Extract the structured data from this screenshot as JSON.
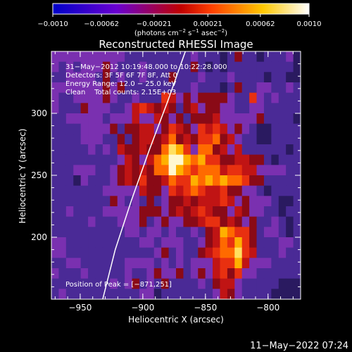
{
  "chart_data": {
    "type": "heatmap",
    "title": "Reconstructed RHESSI Image",
    "xlabel": "Heliocentric X (arcsec)",
    "ylabel": "Heliocentric Y (arcsec)",
    "xlim": [
      -973,
      -774
    ],
    "ylim": [
      150,
      350
    ],
    "xticks": [
      -950,
      -900,
      -850,
      -800
    ],
    "xtick_labels": [
      "−950",
      "−900",
      "−850",
      "−800"
    ],
    "yticks": [
      200,
      250,
      300
    ],
    "ytick_labels": [
      "200",
      "250",
      "300"
    ],
    "colorbar": {
      "ticks": [
        -0.001,
        -0.00062,
        -0.00021,
        0.00021,
        0.00062,
        0.001
      ],
      "tick_labels": [
        "−0.0010",
        "−0.00062",
        "−0.00021",
        "0.00021",
        "0.00062",
        "0.0010"
      ],
      "label_main": "(photons cm",
      "label_exp1": "−2",
      "label_mid": " s",
      "label_exp2": "−1",
      "label_end": " asec",
      "label_exp3": "−2",
      "label_close": ")",
      "colors": [
        "#0000c8",
        "#6a00d0",
        "#c00000",
        "#ff4000",
        "#ffc800",
        "#ffffff"
      ]
    },
    "annotations": {
      "time": "31−May−2012 10:19:48.000 to 10:22:28.000",
      "detectors": "Detectors: 3F 5F 6F 7F 8F, Att 0",
      "energy": "Energy Range: 12.0 − 25.0 keV",
      "clean": "Clean    Total counts: 2.15E+03",
      "peak": "Position of Peak = [−871,251]"
    },
    "peak": [
      -871,
      251
    ],
    "limb_curve": [
      [
        -932,
        150
      ],
      [
        -922,
        190
      ],
      [
        -909,
        230
      ],
      [
        -895,
        270
      ],
      [
        -880,
        310
      ],
      [
        -866,
        350
      ]
    ],
    "image_grid": [
      "2222222222111111111211101311011120",
      "2121222321112111111310101111111110",
      "1122221312112111311121112111101100",
      "2222222323111111111211101311221121",
      "2112222321121115423233332115212111",
      "2111322211245434313423322112211111",
      "1122222122242243231333422222311110",
      "1111222231334423543254542321001111",
      "1111222113134434634355634211001111",
      "1111121214334336875266342411111101",
      "1111111112432467997675533443310111",
      "1112221123434366976566645544222211",
      "1110211123435334655767676653311111",
      "1111111222224332545654453322101111",
      "1111111132121312334344454232221001",
      "1121111222223332343454332432211011",
      "1111121112223123223345534323112101",
      "1111111111221221211213476553122101",
      "2211111111112212221123465753111221",
      "2211111111111123121134566854111211",
      "1122111111222212121222455742221111",
      "2111211111211232231232453522111111",
      "1111111121231213111121344211111000",
      "1211111111112201111111243211110000"
    ]
  },
  "footer": {
    "date": "11−May−2022 07:24"
  }
}
